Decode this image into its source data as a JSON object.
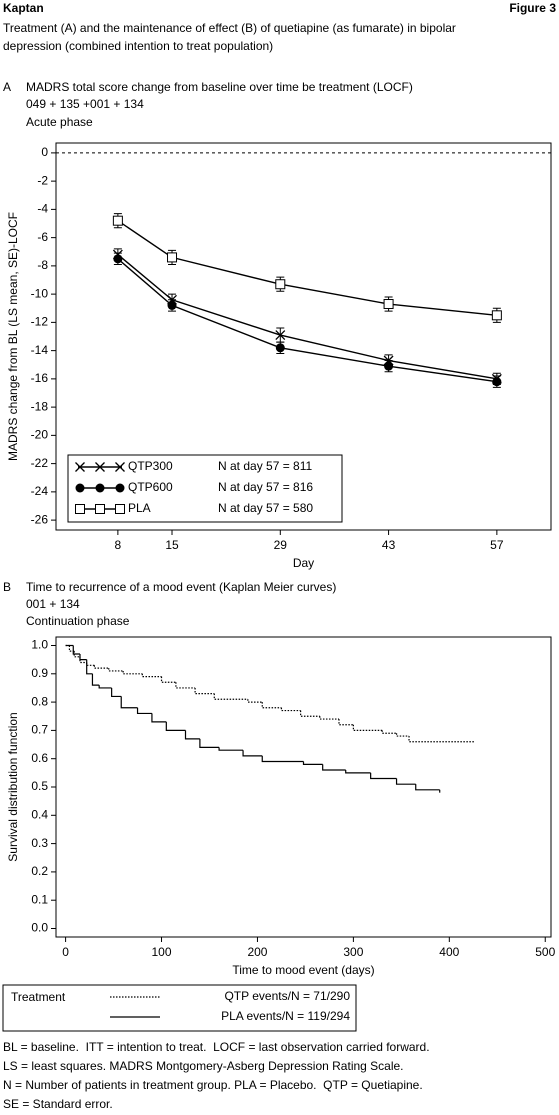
{
  "header": {
    "author": "Kaptan",
    "figure": "Figure 3",
    "caption": [
      "Treatment (A) and the maintenance of effect (B) of quetiapine (as fumarate) in bipolar",
      "depression (combined intention to treat population)"
    ]
  },
  "chart_data": [
    {
      "type": "line",
      "panel": "A",
      "title": "MADRS total score change from baseline over time be treatment (LOCF)",
      "subtitle": [
        "049 + 135 +001 + 134",
        "Acute phase"
      ],
      "x_label": "Day",
      "y_label": "MADRS change from BL (LS mean, SE)-LOCF",
      "x": [
        8,
        15,
        29,
        43,
        57
      ],
      "xlim": [
        0,
        64
      ],
      "xticks": [
        8,
        15,
        29,
        43,
        57
      ],
      "ylim": [
        -26.7,
        0.7
      ],
      "yticks": [
        0,
        -2,
        -4,
        -6,
        -8,
        -10,
        -12,
        -14,
        -16,
        -18,
        -20,
        -22,
        -24,
        -26
      ],
      "reference_line": 0,
      "series": [
        {
          "name": "QTP300",
          "n_label": "N at day 57 = 811",
          "color": "#000000",
          "marker": "x",
          "values": [
            -7.2,
            -10.4,
            -12.9,
            -14.7,
            -16.0
          ],
          "errors": [
            0.4,
            0.4,
            0.5,
            0.4,
            0.4
          ]
        },
        {
          "name": "QTP600",
          "n_label": "N at day 57 = 816",
          "color": "#000000",
          "marker": "circle",
          "values": [
            -7.5,
            -10.8,
            -13.8,
            -15.1,
            -16.2
          ],
          "errors": [
            0.4,
            0.4,
            0.4,
            0.4,
            0.4
          ]
        },
        {
          "name": "PLA",
          "n_label": "N at day 57 = 580",
          "color": "#000000",
          "marker": "square",
          "values": [
            -4.8,
            -7.4,
            -9.3,
            -10.7,
            -11.5
          ],
          "errors": [
            0.5,
            0.5,
            0.5,
            0.5,
            0.5
          ]
        }
      ]
    },
    {
      "type": "step",
      "panel": "B",
      "title": "Time to recurrence of a mood event (Kaplan Meier curves)",
      "subtitle": [
        "001 + 134",
        "Continuation phase"
      ],
      "x_label": "Time to mood event (days)",
      "y_label": "Survival distribution function",
      "xlim": [
        -10,
        506
      ],
      "xticks": [
        0,
        100,
        200,
        300,
        400,
        500
      ],
      "ylim": [
        -0.03,
        1.03
      ],
      "yticks": [
        {
          "value": 1,
          "label": "1.0"
        },
        0.9,
        0.8,
        0.7,
        0.6,
        0.5,
        0.4,
        0.3,
        0.2,
        0.1,
        {
          "value": 0,
          "label": "0.0"
        }
      ],
      "legend_title": "Treatment",
      "series": [
        {
          "name": "QTP events/N = 71/290",
          "color": "#000000",
          "dash": "dotted",
          "x": [
            0,
            4,
            9,
            15,
            22,
            30,
            45,
            60,
            80,
            100,
            115,
            135,
            155,
            190,
            205,
            225,
            245,
            265,
            285,
            300,
            330,
            345,
            358,
            427
          ],
          "values": [
            1.0,
            0.98,
            0.96,
            0.94,
            0.93,
            0.92,
            0.91,
            0.9,
            0.89,
            0.87,
            0.85,
            0.83,
            0.81,
            0.8,
            0.78,
            0.77,
            0.75,
            0.74,
            0.72,
            0.7,
            0.69,
            0.68,
            0.66,
            0.66
          ]
        },
        {
          "name": "PLA events/N = 119/294",
          "color": "#000000",
          "dash": "solid",
          "x": [
            0,
            8,
            15,
            22,
            28,
            35,
            48,
            58,
            75,
            90,
            105,
            125,
            140,
            160,
            185,
            205,
            248,
            268,
            292,
            318,
            345,
            365,
            390
          ],
          "values": [
            1.0,
            0.97,
            0.95,
            0.9,
            0.86,
            0.85,
            0.82,
            0.78,
            0.76,
            0.73,
            0.7,
            0.67,
            0.64,
            0.63,
            0.61,
            0.59,
            0.58,
            0.56,
            0.55,
            0.53,
            0.51,
            0.49,
            0.48
          ]
        }
      ]
    }
  ],
  "footnotes": [
    "BL = baseline.  ITT = intention to treat.  LOCF = last observation carried forward.",
    "LS = least squares. MADRS Montgomery-Asberg Depression Rating Scale.",
    "N = Number of patients in treatment group. PLA = Placebo.  QTP = Quetiapine.",
    "SE = Standard error."
  ]
}
